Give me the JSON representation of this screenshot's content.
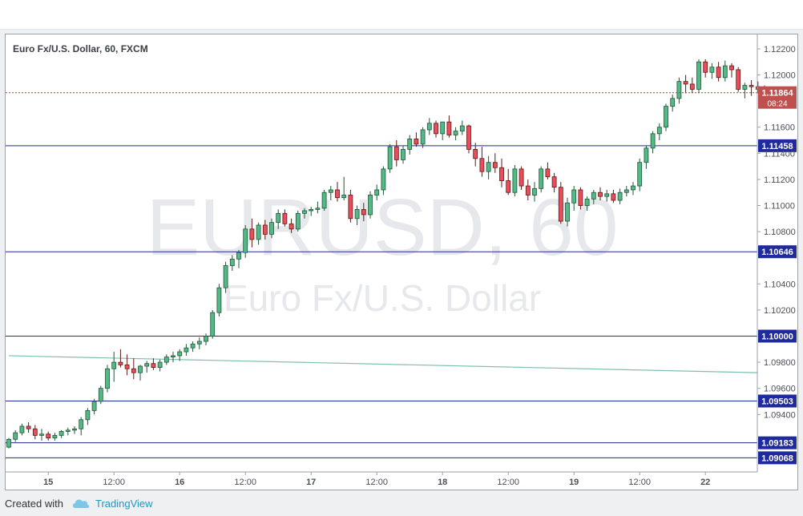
{
  "colors": {
    "up": "#53b987",
    "down": "#eb4d5c",
    "up_border": "#225437",
    "down_border": "#5b1a13",
    "level_line": "#1e2a9e",
    "trend_line": "#7fbfb0",
    "last_price_line": "#c0392b",
    "watermark": "#e6e8ec"
  },
  "chart_data": {
    "type": "candlestick",
    "title": "Euro Fx/U.S. Dollar, 60, FXCM",
    "watermark_symbol": "EURUSD, 60",
    "watermark_name": "Euro Fx/U.S. Dollar",
    "ylim": [
      1.0896,
      1.1231
    ],
    "y_ticks": [
      "1.12200",
      "1.12000",
      "1.11600",
      "1.11400",
      "1.11200",
      "1.11000",
      "1.10800",
      "1.10400",
      "1.10200",
      "1.09800",
      "1.09600",
      "1.09400"
    ],
    "x_ticks": [
      {
        "bar": 6,
        "label": "15"
      },
      {
        "bar": 16,
        "label": "12:00"
      },
      {
        "bar": 26,
        "label": "16"
      },
      {
        "bar": 36,
        "label": "12:00"
      },
      {
        "bar": 46,
        "label": "17"
      },
      {
        "bar": 56,
        "label": "12:00"
      },
      {
        "bar": 66,
        "label": "18"
      },
      {
        "bar": 76,
        "label": "12:00"
      },
      {
        "bar": 86,
        "label": "19"
      },
      {
        "bar": 96,
        "label": "12:00"
      },
      {
        "bar": 106,
        "label": "22"
      }
    ],
    "horizontal_levels": [
      {
        "label": "1.11458",
        "value": 1.11458
      },
      {
        "label": "1.10646",
        "value": 1.10646
      },
      {
        "label": "1.10000",
        "value": 1.1
      },
      {
        "label": "1.09503",
        "value": 1.09503
      },
      {
        "label": "1.09183",
        "value": 1.09183
      },
      {
        "label": "1.09068",
        "value": 1.09068
      }
    ],
    "last_price": {
      "label": "1.11864",
      "value": 1.11864,
      "countdown": "08:24"
    },
    "trend_line": {
      "start": {
        "bar": 0,
        "value": 1.0985
      },
      "end": {
        "bar": 114,
        "value": 1.0972
      }
    },
    "candles": [
      [
        1.0915,
        1.0922,
        1.0914,
        1.0921
      ],
      [
        1.0921,
        1.0928,
        1.0919,
        1.0926
      ],
      [
        1.0926,
        1.0933,
        1.0924,
        1.0931
      ],
      [
        1.0931,
        1.0934,
        1.0926,
        1.0929
      ],
      [
        1.0929,
        1.0932,
        1.0921,
        1.0924
      ],
      [
        1.0924,
        1.0929,
        1.092,
        1.0925
      ],
      [
        1.0925,
        1.0927,
        1.092,
        1.0922
      ],
      [
        1.0922,
        1.0926,
        1.092,
        1.0924
      ],
      [
        1.0924,
        1.0928,
        1.0922,
        1.0927
      ],
      [
        1.0927,
        1.093,
        1.0924,
        1.0928
      ],
      [
        1.0928,
        1.0931,
        1.0925,
        1.0929
      ],
      [
        1.0929,
        1.0938,
        1.0924,
        1.0936
      ],
      [
        1.0936,
        1.0945,
        1.0932,
        1.0943
      ],
      [
        1.0943,
        1.0952,
        1.094,
        1.095
      ],
      [
        1.095,
        1.0962,
        1.0948,
        1.096
      ],
      [
        1.096,
        1.0978,
        1.0957,
        1.0975
      ],
      [
        1.0975,
        1.0988,
        1.0965,
        1.098
      ],
      [
        1.098,
        1.099,
        1.0976,
        1.0978
      ],
      [
        1.0978,
        1.0986,
        1.097,
        1.0975
      ],
      [
        1.0975,
        1.0983,
        1.0967,
        1.0972
      ],
      [
        1.0972,
        1.0978,
        1.0966,
        1.0977
      ],
      [
        1.0977,
        1.0981,
        1.0972,
        1.0979
      ],
      [
        1.0979,
        1.0983,
        1.0974,
        1.0976
      ],
      [
        1.0976,
        1.0982,
        1.0973,
        1.098
      ],
      [
        1.098,
        1.0986,
        1.0978,
        1.0984
      ],
      [
        1.0984,
        1.0988,
        1.098,
        1.0985
      ],
      [
        1.0985,
        1.099,
        1.0981,
        1.0988
      ],
      [
        1.0988,
        1.0994,
        1.0985,
        1.0991
      ],
      [
        1.0991,
        1.0996,
        1.0988,
        1.0994
      ],
      [
        1.0994,
        1.0999,
        1.099,
        1.0996
      ],
      [
        1.0996,
        1.1002,
        1.0993,
        1.1
      ],
      [
        1.1,
        1.102,
        1.0998,
        1.1018
      ],
      [
        1.1018,
        1.104,
        1.1015,
        1.1037
      ],
      [
        1.1037,
        1.1057,
        1.1033,
        1.1054
      ],
      [
        1.1054,
        1.1062,
        1.105,
        1.1059
      ],
      [
        1.1059,
        1.1066,
        1.1052,
        1.1064
      ],
      [
        1.1064,
        1.1085,
        1.106,
        1.1082
      ],
      [
        1.1082,
        1.109,
        1.1068,
        1.1074
      ],
      [
        1.1074,
        1.1087,
        1.107,
        1.1085
      ],
      [
        1.1085,
        1.1089,
        1.1074,
        1.1078
      ],
      [
        1.1078,
        1.109,
        1.1075,
        1.1087
      ],
      [
        1.1087,
        1.1097,
        1.1082,
        1.1094
      ],
      [
        1.1094,
        1.1097,
        1.1084,
        1.1086
      ],
      [
        1.1086,
        1.109,
        1.1079,
        1.1082
      ],
      [
        1.1082,
        1.1096,
        1.108,
        1.1094
      ],
      [
        1.1094,
        1.1098,
        1.109,
        1.1096
      ],
      [
        1.1096,
        1.1099,
        1.1092,
        1.1097
      ],
      [
        1.1097,
        1.1103,
        1.1094,
        1.1098
      ],
      [
        1.1098,
        1.1112,
        1.1096,
        1.111
      ],
      [
        1.111,
        1.1115,
        1.1104,
        1.1112
      ],
      [
        1.1112,
        1.1118,
        1.1103,
        1.1106
      ],
      [
        1.1106,
        1.1122,
        1.1104,
        1.1108
      ],
      [
        1.1108,
        1.1112,
        1.1087,
        1.109
      ],
      [
        1.109,
        1.11,
        1.1085,
        1.1097
      ],
      [
        1.1097,
        1.1102,
        1.1088,
        1.1093
      ],
      [
        1.1093,
        1.1111,
        1.109,
        1.1108
      ],
      [
        1.1108,
        1.1116,
        1.1104,
        1.1112
      ],
      [
        1.1112,
        1.113,
        1.1108,
        1.1128
      ],
      [
        1.1128,
        1.1147,
        1.1125,
        1.1145
      ],
      [
        1.1145,
        1.115,
        1.113,
        1.1135
      ],
      [
        1.1135,
        1.1146,
        1.1132,
        1.1143
      ],
      [
        1.1143,
        1.1154,
        1.1139,
        1.1151
      ],
      [
        1.1151,
        1.1156,
        1.1145,
        1.1147
      ],
      [
        1.1147,
        1.116,
        1.1144,
        1.1158
      ],
      [
        1.1158,
        1.1167,
        1.1154,
        1.1163
      ],
      [
        1.1163,
        1.1165,
        1.1152,
        1.1155
      ],
      [
        1.1155,
        1.1164,
        1.115,
        1.1164
      ],
      [
        1.1164,
        1.1169,
        1.1152,
        1.1154
      ],
      [
        1.1154,
        1.116,
        1.115,
        1.1157
      ],
      [
        1.1157,
        1.1165,
        1.1154,
        1.1161
      ],
      [
        1.1161,
        1.1162,
        1.114,
        1.1143
      ],
      [
        1.1143,
        1.1148,
        1.113,
        1.1136
      ],
      [
        1.1136,
        1.1145,
        1.1122,
        1.1126
      ],
      [
        1.1126,
        1.1138,
        1.112,
        1.1133
      ],
      [
        1.1133,
        1.114,
        1.1125,
        1.1129
      ],
      [
        1.1129,
        1.1136,
        1.1114,
        1.1119
      ],
      [
        1.1119,
        1.1128,
        1.1108,
        1.111
      ],
      [
        1.111,
        1.1131,
        1.1107,
        1.1128
      ],
      [
        1.1128,
        1.113,
        1.1112,
        1.1115
      ],
      [
        1.1115,
        1.112,
        1.1104,
        1.1108
      ],
      [
        1.1108,
        1.1118,
        1.1103,
        1.1113
      ],
      [
        1.1113,
        1.113,
        1.111,
        1.1128
      ],
      [
        1.1128,
        1.1133,
        1.112,
        1.1122
      ],
      [
        1.1122,
        1.1125,
        1.111,
        1.1114
      ],
      [
        1.1114,
        1.1118,
        1.1086,
        1.1088
      ],
      [
        1.1088,
        1.1106,
        1.1084,
        1.1102
      ],
      [
        1.1102,
        1.1115,
        1.1096,
        1.1112
      ],
      [
        1.1112,
        1.1114,
        1.1097,
        1.11
      ],
      [
        1.11,
        1.1107,
        1.1096,
        1.1105
      ],
      [
        1.1105,
        1.1112,
        1.1101,
        1.111
      ],
      [
        1.111,
        1.1114,
        1.1104,
        1.1107
      ],
      [
        1.1107,
        1.1112,
        1.1103,
        1.1109
      ],
      [
        1.1109,
        1.1112,
        1.1102,
        1.1104
      ],
      [
        1.1104,
        1.1113,
        1.1101,
        1.111
      ],
      [
        1.111,
        1.1115,
        1.1107,
        1.1112
      ],
      [
        1.1112,
        1.1118,
        1.1108,
        1.1115
      ],
      [
        1.1115,
        1.1136,
        1.1111,
        1.1133
      ],
      [
        1.1133,
        1.1146,
        1.1128,
        1.1144
      ],
      [
        1.1144,
        1.1157,
        1.114,
        1.1155
      ],
      [
        1.1155,
        1.1163,
        1.115,
        1.116
      ],
      [
        1.116,
        1.1178,
        1.1157,
        1.1176
      ],
      [
        1.1176,
        1.1185,
        1.1172,
        1.1182
      ],
      [
        1.1182,
        1.1198,
        1.1178,
        1.1195
      ],
      [
        1.1195,
        1.12,
        1.1186,
        1.1193
      ],
      [
        1.1193,
        1.1198,
        1.1186,
        1.1189
      ],
      [
        1.1189,
        1.1212,
        1.1186,
        1.121
      ],
      [
        1.121,
        1.1212,
        1.1198,
        1.1202
      ],
      [
        1.1202,
        1.1209,
        1.1197,
        1.1206
      ],
      [
        1.1206,
        1.121,
        1.1195,
        1.1198
      ],
      [
        1.1198,
        1.1211,
        1.1195,
        1.1207
      ],
      [
        1.1207,
        1.1209,
        1.1198,
        1.1204
      ],
      [
        1.1204,
        1.1206,
        1.1187,
        1.1189
      ],
      [
        1.1189,
        1.1194,
        1.1182,
        1.1192
      ],
      [
        1.1192,
        1.1196,
        1.1184,
        1.1191
      ],
      [
        1.1191,
        1.1195,
        1.1186,
        1.1189
      ],
      [
        1.1189,
        1.1192,
        1.1184,
        1.1186
      ]
    ]
  },
  "footer": {
    "created_with": "Created with",
    "brand": "TradingView"
  }
}
